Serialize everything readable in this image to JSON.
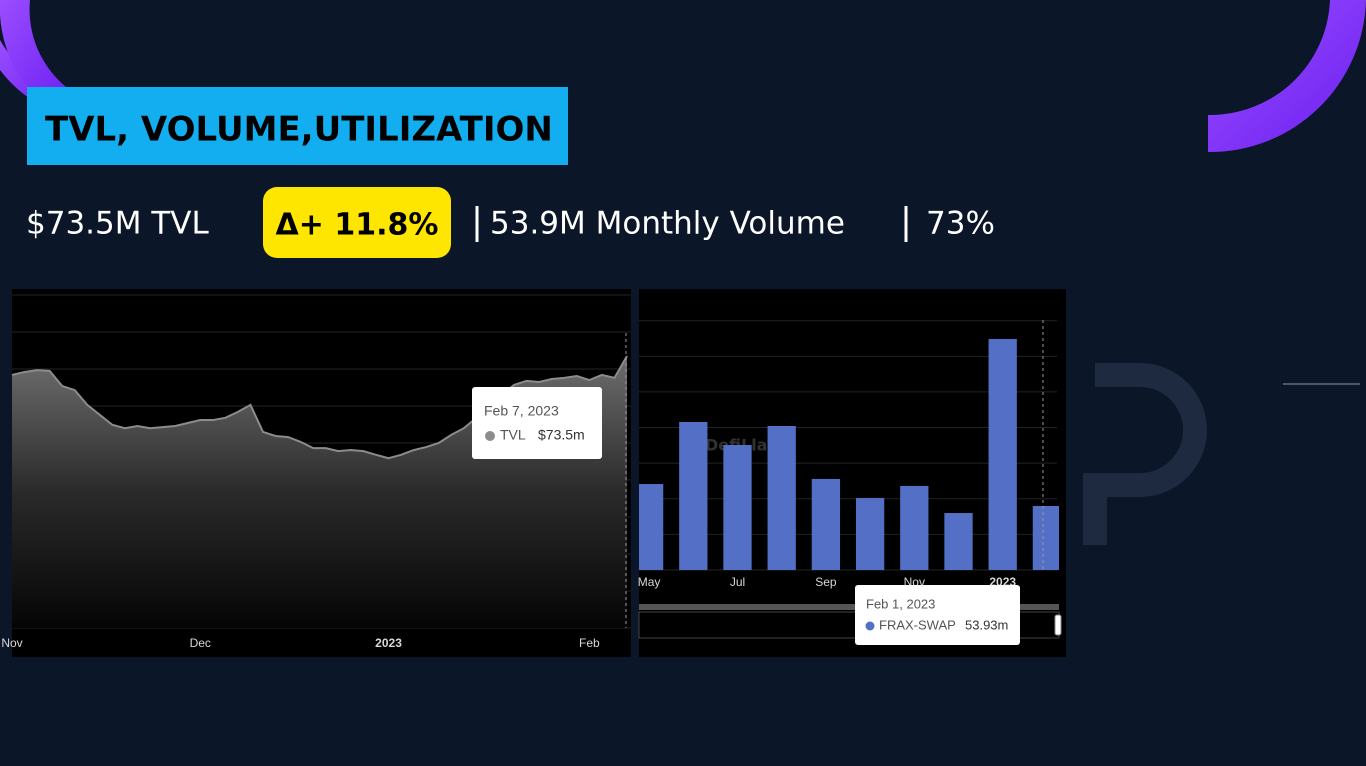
{
  "header": {
    "title": "TVL, VOLUME,UTILIZATION"
  },
  "stats": {
    "tvl": "$73.5M TVL",
    "change": "Δ+ 11.8%",
    "volume": "53.9M Monthly Volume",
    "utilization": "73%"
  },
  "chart_data": [
    {
      "type": "area",
      "color": "#8c8c8c",
      "watermark": "DefiLlama",
      "categories": [
        "Nov",
        null,
        null,
        null,
        null,
        null,
        null,
        null,
        null,
        null,
        null,
        null,
        null,
        null,
        null,
        "Dec",
        null,
        null,
        null,
        null,
        null,
        null,
        null,
        null,
        null,
        null,
        null,
        null,
        null,
        null,
        "2023",
        null,
        null,
        null,
        null,
        null,
        null,
        null,
        null,
        null,
        null,
        null,
        null,
        null,
        null,
        null,
        "Feb",
        null,
        null,
        null
      ],
      "values": [
        68.4,
        69.2,
        69.7,
        69.5,
        65.4,
        64.3,
        60.3,
        57.6,
        54.9,
        54,
        54.6,
        54,
        54.3,
        54.6,
        55.4,
        56.2,
        56.2,
        56.8,
        58.4,
        60.3,
        53,
        51.9,
        51.6,
        50.3,
        48.6,
        48.6,
        47.8,
        48.1,
        47.8,
        46.8,
        45.9,
        46.8,
        48.1,
        48.9,
        50,
        52.2,
        54,
        56.8,
        59.5,
        63,
        65.7,
        66.8,
        66.5,
        67.3,
        67.6,
        68.1,
        67,
        68.4,
        67.6,
        73.5
      ],
      "ylim": [
        0,
        90
      ],
      "yticks": [
        0,
        10,
        20,
        30,
        40,
        50,
        60,
        70,
        80,
        90
      ],
      "grid": true,
      "ytick_labels": false,
      "tooltip": {
        "date": "Feb 7, 2023",
        "series": "TVL",
        "value": "$73.5m"
      }
    },
    {
      "type": "bar",
      "color": "#5470c6",
      "watermark": "DefiLlama",
      "categories": [
        "May",
        null,
        "Jul",
        null,
        "Sep",
        null,
        "Nov",
        null,
        "2023",
        null
      ],
      "values": [
        72.4,
        124.7,
        105.3,
        121.3,
        76.7,
        60.7,
        70.8,
        48,
        194.6,
        53.93
      ],
      "ylim": [
        0,
        210
      ],
      "yticks": [
        0,
        30,
        60,
        90,
        120,
        150,
        180,
        210
      ],
      "grid": true,
      "ytick_labels": false,
      "tooltip": {
        "date": "Feb 1, 2023",
        "series": "FRAX-SWAP",
        "value": "53.93m"
      }
    }
  ]
}
